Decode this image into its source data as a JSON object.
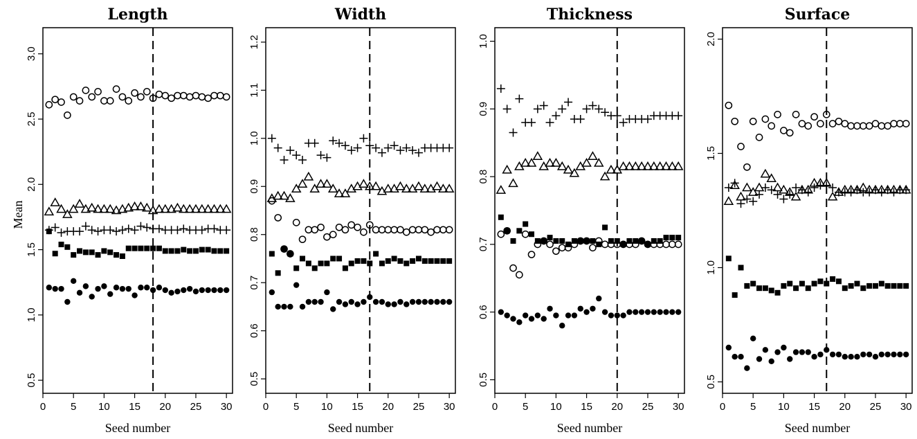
{
  "chart_data": [
    {
      "type": "scatter",
      "title": "Length",
      "xlabel": "Seed number",
      "ylabel": "Mean",
      "xlim": [
        0,
        31
      ],
      "ylim": [
        0.4,
        3.2
      ],
      "xticks": [
        "0",
        "5",
        "10",
        "15",
        "20",
        "25",
        "30"
      ],
      "yticks": [
        "0.5",
        "1.0",
        "1.5",
        "2.0",
        "2.5",
        "3.0"
      ],
      "cutoff_x": 18,
      "series": [
        {
          "marker": "circle-open",
          "values": [
            2.61,
            2.65,
            2.63,
            2.53,
            2.67,
            2.64,
            2.72,
            2.67,
            2.71,
            2.64,
            2.64,
            2.73,
            2.67,
            2.64,
            2.7,
            2.67,
            2.71,
            2.66,
            2.69,
            2.68,
            2.66,
            2.68,
            2.68,
            2.67,
            2.68,
            2.67,
            2.66,
            2.68,
            2.68,
            2.67
          ]
        },
        {
          "marker": "triangle-open",
          "values": [
            1.79,
            1.86,
            1.81,
            1.77,
            1.81,
            1.85,
            1.81,
            1.82,
            1.81,
            1.81,
            1.81,
            1.8,
            1.81,
            1.82,
            1.83,
            1.83,
            1.82,
            1.8,
            1.81,
            1.81,
            1.81,
            1.82,
            1.81,
            1.81,
            1.81,
            1.81,
            1.81,
            1.81,
            1.81,
            1.81
          ]
        },
        {
          "marker": "plus",
          "values": [
            1.65,
            1.67,
            1.63,
            1.64,
            1.64,
            1.64,
            1.68,
            1.65,
            1.64,
            1.65,
            1.65,
            1.64,
            1.65,
            1.66,
            1.65,
            1.68,
            1.67,
            1.66,
            1.66,
            1.65,
            1.65,
            1.65,
            1.66,
            1.65,
            1.65,
            1.65,
            1.66,
            1.66,
            1.65,
            1.65
          ]
        },
        {
          "marker": "square-filled",
          "values": [
            1.64,
            1.47,
            1.54,
            1.52,
            1.46,
            1.49,
            1.48,
            1.48,
            1.46,
            1.49,
            1.48,
            1.46,
            1.45,
            1.51,
            1.51,
            1.51,
            1.51,
            1.51,
            1.51,
            1.49,
            1.49,
            1.49,
            1.5,
            1.49,
            1.49,
            1.5,
            1.5,
            1.49,
            1.49,
            1.49
          ]
        },
        {
          "marker": "circle-filled",
          "values": [
            1.21,
            1.2,
            1.2,
            1.1,
            1.26,
            1.17,
            1.22,
            1.14,
            1.2,
            1.22,
            1.16,
            1.21,
            1.2,
            1.2,
            1.15,
            1.21,
            1.21,
            1.19,
            1.21,
            1.19,
            1.17,
            1.18,
            1.19,
            1.2,
            1.18,
            1.19,
            1.19,
            1.19,
            1.19,
            1.19
          ]
        }
      ]
    },
    {
      "type": "scatter",
      "title": "Width",
      "xlabel": "Seed number",
      "ylabel": "",
      "xlim": [
        0,
        31
      ],
      "ylim": [
        0.47,
        1.23
      ],
      "xticks": [
        "0",
        "5",
        "10",
        "15",
        "20",
        "25",
        "30"
      ],
      "yticks": [
        "0.5",
        "0.6",
        "0.7",
        "0.8",
        "0.9",
        "1.0",
        "1.1",
        "1.2"
      ],
      "cutoff_x": 17,
      "series": [
        {
          "marker": "plus",
          "values": [
            1.0,
            0.98,
            0.955,
            0.975,
            0.965,
            0.955,
            0.99,
            0.99,
            0.965,
            0.96,
            0.995,
            0.99,
            0.985,
            0.975,
            0.98,
            1.0,
            0.985,
            0.98,
            0.97,
            0.98,
            0.985,
            0.975,
            0.98,
            0.975,
            0.97,
            0.98,
            0.98,
            0.98,
            0.98,
            0.98
          ]
        },
        {
          "marker": "triangle-open",
          "values": [
            0.875,
            0.88,
            0.88,
            0.875,
            0.895,
            0.905,
            0.92,
            0.895,
            0.905,
            0.905,
            0.895,
            0.885,
            0.885,
            0.895,
            0.9,
            0.905,
            0.9,
            0.9,
            0.89,
            0.895,
            0.895,
            0.9,
            0.895,
            0.895,
            0.9,
            0.895,
            0.895,
            0.9,
            0.895,
            0.895
          ]
        },
        {
          "marker": "circle-open",
          "values": [
            0.87,
            0.835,
            0.77,
            0.76,
            0.825,
            0.79,
            0.81,
            0.81,
            0.815,
            0.795,
            0.8,
            0.815,
            0.81,
            0.82,
            0.815,
            0.805,
            0.82,
            0.81,
            0.81,
            0.81,
            0.81,
            0.81,
            0.805,
            0.81,
            0.81,
            0.81,
            0.805,
            0.81,
            0.81,
            0.81
          ]
        },
        {
          "marker": "square-filled",
          "values": [
            0.76,
            0.72,
            0.77,
            0.76,
            0.73,
            0.75,
            0.74,
            0.73,
            0.74,
            0.74,
            0.75,
            0.75,
            0.73,
            0.74,
            0.745,
            0.745,
            0.74,
            0.76,
            0.74,
            0.745,
            0.75,
            0.745,
            0.74,
            0.745,
            0.75,
            0.745,
            0.745,
            0.745,
            0.745,
            0.745
          ]
        },
        {
          "marker": "circle-filled",
          "values": [
            0.68,
            0.65,
            0.65,
            0.65,
            0.695,
            0.65,
            0.66,
            0.66,
            0.66,
            0.68,
            0.645,
            0.66,
            0.655,
            0.66,
            0.655,
            0.66,
            0.67,
            0.66,
            0.66,
            0.655,
            0.655,
            0.66,
            0.655,
            0.66,
            0.66,
            0.66,
            0.66,
            0.66,
            0.66,
            0.66
          ]
        }
      ]
    },
    {
      "type": "scatter",
      "title": "Thickness",
      "xlabel": "Seed number",
      "ylabel": "",
      "xlim": [
        0,
        31
      ],
      "ylim": [
        0.48,
        1.02
      ],
      "xticks": [
        "0",
        "5",
        "10",
        "15",
        "20",
        "25",
        "30"
      ],
      "yticks": [
        "0.5",
        "0.6",
        "0.7",
        "0.8",
        "0.9",
        "1.0"
      ],
      "cutoff_x": 20,
      "series": [
        {
          "marker": "plus",
          "values": [
            0.93,
            0.9,
            0.865,
            0.915,
            0.88,
            0.88,
            0.9,
            0.905,
            0.88,
            0.89,
            0.9,
            0.91,
            0.885,
            0.885,
            0.9,
            0.905,
            0.9,
            0.895,
            0.89,
            0.89,
            0.88,
            0.885,
            0.885,
            0.885,
            0.885,
            0.89,
            0.89,
            0.89,
            0.89,
            0.89
          ]
        },
        {
          "marker": "triangle-open",
          "values": [
            0.78,
            0.81,
            0.79,
            0.815,
            0.82,
            0.82,
            0.83,
            0.815,
            0.82,
            0.82,
            0.815,
            0.81,
            0.805,
            0.815,
            0.82,
            0.83,
            0.82,
            0.8,
            0.81,
            0.81,
            0.815,
            0.815,
            0.815,
            0.815,
            0.815,
            0.815,
            0.815,
            0.815,
            0.815,
            0.815
          ]
        },
        {
          "marker": "circle-open",
          "values": [
            0.715,
            0.72,
            0.665,
            0.655,
            0.715,
            0.685,
            0.7,
            0.705,
            0.7,
            0.69,
            0.695,
            0.695,
            0.7,
            0.705,
            0.705,
            0.695,
            0.705,
            0.7,
            0.7,
            0.7,
            0.7,
            0.7,
            0.7,
            0.705,
            0.7,
            0.7,
            0.7,
            0.7,
            0.7,
            0.7
          ]
        },
        {
          "marker": "square-filled",
          "values": [
            0.74,
            0.72,
            0.705,
            0.72,
            0.73,
            0.715,
            0.705,
            0.705,
            0.71,
            0.705,
            0.705,
            0.7,
            0.705,
            0.705,
            0.705,
            0.705,
            0.7,
            0.725,
            0.705,
            0.705,
            0.7,
            0.705,
            0.705,
            0.705,
            0.7,
            0.705,
            0.705,
            0.71,
            0.71,
            0.71
          ]
        },
        {
          "marker": "circle-filled",
          "values": [
            0.6,
            0.595,
            0.59,
            0.585,
            0.595,
            0.59,
            0.595,
            0.59,
            0.605,
            0.595,
            0.58,
            0.595,
            0.595,
            0.605,
            0.6,
            0.605,
            0.62,
            0.6,
            0.595,
            0.595,
            0.595,
            0.6,
            0.6,
            0.6,
            0.6,
            0.6,
            0.6,
            0.6,
            0.6,
            0.6
          ]
        }
      ]
    },
    {
      "type": "scatter",
      "title": "Surface",
      "xlabel": "Seed number",
      "ylabel": "",
      "xlim": [
        0,
        31
      ],
      "ylim": [
        0.45,
        2.05
      ],
      "xticks": [
        "0",
        "5",
        "10",
        "15",
        "20",
        "25",
        "30"
      ],
      "yticks": [
        "0.5",
        "1.0",
        "1.5",
        "2.0"
      ],
      "cutoff_x": 17,
      "series": [
        {
          "marker": "circle-open",
          "values": [
            1.71,
            1.64,
            1.53,
            1.44,
            1.64,
            1.57,
            1.65,
            1.62,
            1.67,
            1.6,
            1.59,
            1.67,
            1.63,
            1.62,
            1.66,
            1.63,
            1.67,
            1.63,
            1.64,
            1.63,
            1.62,
            1.62,
            1.62,
            1.62,
            1.63,
            1.62,
            1.62,
            1.63,
            1.63,
            1.63
          ]
        },
        {
          "marker": "triangle-open",
          "values": [
            1.29,
            1.36,
            1.31,
            1.35,
            1.33,
            1.35,
            1.41,
            1.39,
            1.35,
            1.34,
            1.33,
            1.31,
            1.34,
            1.34,
            1.37,
            1.37,
            1.37,
            1.31,
            1.33,
            1.34,
            1.34,
            1.34,
            1.35,
            1.34,
            1.34,
            1.34,
            1.34,
            1.34,
            1.34,
            1.34
          ]
        },
        {
          "marker": "plus",
          "values": [
            1.35,
            1.37,
            1.28,
            1.3,
            1.29,
            1.32,
            1.35,
            1.34,
            1.32,
            1.3,
            1.32,
            1.35,
            1.34,
            1.33,
            1.35,
            1.36,
            1.36,
            1.35,
            1.33,
            1.33,
            1.33,
            1.34,
            1.33,
            1.33,
            1.34,
            1.33,
            1.34,
            1.33,
            1.34,
            1.34
          ]
        },
        {
          "marker": "square-filled",
          "values": [
            1.04,
            0.88,
            1.0,
            0.92,
            0.93,
            0.91,
            0.91,
            0.9,
            0.89,
            0.92,
            0.93,
            0.91,
            0.93,
            0.91,
            0.93,
            0.94,
            0.93,
            0.95,
            0.94,
            0.91,
            0.92,
            0.93,
            0.91,
            0.92,
            0.92,
            0.93,
            0.92,
            0.92,
            0.92,
            0.92
          ]
        },
        {
          "marker": "circle-filled",
          "values": [
            0.65,
            0.61,
            0.61,
            0.56,
            0.69,
            0.6,
            0.64,
            0.59,
            0.63,
            0.65,
            0.6,
            0.63,
            0.63,
            0.63,
            0.61,
            0.62,
            0.64,
            0.62,
            0.62,
            0.61,
            0.61,
            0.61,
            0.62,
            0.62,
            0.61,
            0.62,
            0.62,
            0.62,
            0.62,
            0.62
          ]
        }
      ]
    }
  ]
}
